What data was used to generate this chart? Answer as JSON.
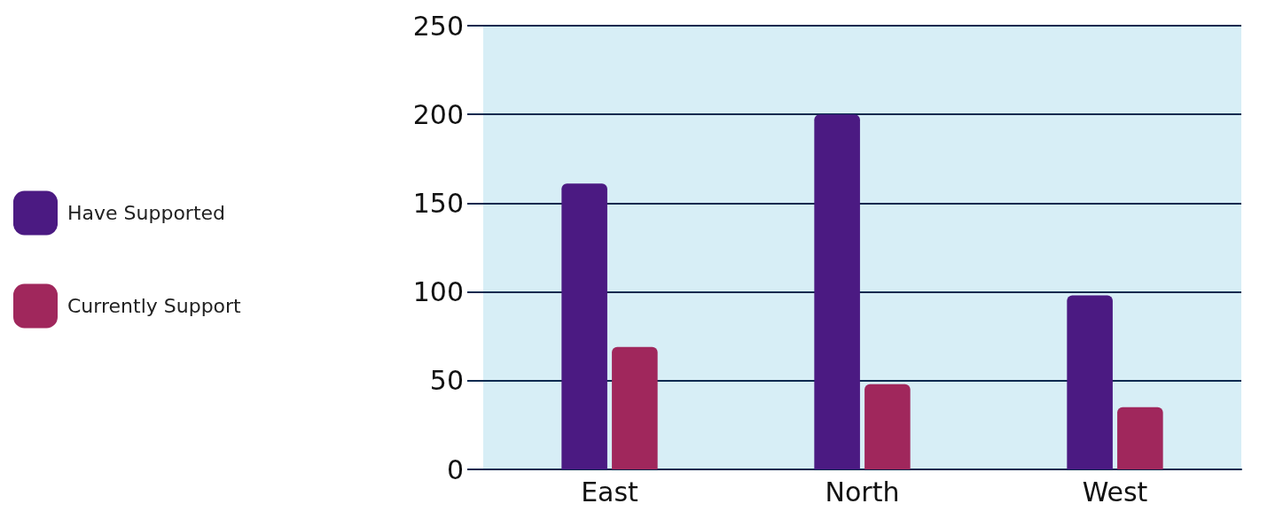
{
  "chart_data": {
    "type": "bar",
    "categories": [
      "East",
      "North",
      "West"
    ],
    "series": [
      {
        "name": "Have Supported",
        "color": "#4b1a82",
        "values": [
          161,
          200,
          98
        ]
      },
      {
        "name": "Currently Support",
        "color": "#a0275c",
        "values": [
          69,
          48,
          35
        ]
      }
    ],
    "ylim": [
      0,
      250
    ],
    "yticks": [
      0,
      50,
      100,
      150,
      200,
      250
    ],
    "grid": "y",
    "legend": "left"
  }
}
